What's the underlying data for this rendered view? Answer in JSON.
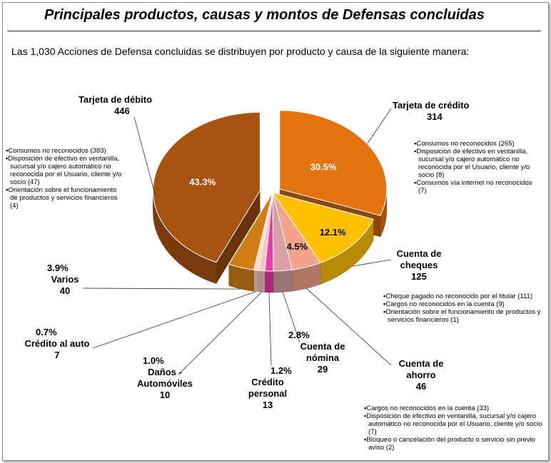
{
  "header": {
    "title": "Principales productos, causas y montos de Defensas concluidas",
    "subtitle": "Las 1,030 Acciones de Defensa concluidas se distribuyen por producto y causa de la siguiente manera:"
  },
  "chart_data": {
    "type": "pie",
    "total": 1030,
    "slices": [
      {
        "key": "credito_tarjeta",
        "label": "Tarjeta de crédito",
        "value": 314,
        "percent_label": "30.5%",
        "color": "#E3730F"
      },
      {
        "key": "cheques",
        "label": "Cuenta de cheques",
        "value": 125,
        "percent_label": "12.1%",
        "color": "#FFC000"
      },
      {
        "key": "ahorro",
        "label": "Cuenta de ahorro",
        "value": 46,
        "percent_label": "4.5%",
        "color": "#F4A48C"
      },
      {
        "key": "nomina",
        "label": "Cuenta de nómina",
        "value": 29,
        "percent_label": "2.8%",
        "color": "#D9A0A4"
      },
      {
        "key": "personal",
        "label": "Crédito personal",
        "value": 13,
        "percent_label": "1.2%",
        "color": "#E83BA8"
      },
      {
        "key": "danos",
        "label": "Daños - Automóviles",
        "value": 10,
        "percent_label": "1.0%",
        "color": "#F5C8BE"
      },
      {
        "key": "auto",
        "label": "Crédito al auto",
        "value": 7,
        "percent_label": "0.7%",
        "color": "#F7DBC8"
      },
      {
        "key": "varios",
        "label": "Varios",
        "value": 40,
        "percent_label": "3.9%",
        "color": "#D07E14"
      },
      {
        "key": "debito",
        "label": "Tarjeta de débito",
        "value": 446,
        "percent_label": "43.3%",
        "color": "#A8520F"
      }
    ]
  },
  "labels": {
    "debito": {
      "name": "Tarjeta de débito",
      "value": "446"
    },
    "credito": {
      "name": "Tarjeta de crédito",
      "value": "314"
    },
    "cheques": {
      "name1": "Cuenta de",
      "name2": "cheques",
      "value": "125"
    },
    "ahorro": {
      "name1": "Cuenta de",
      "name2": "ahorro",
      "value": "46"
    },
    "nomina": {
      "pct": "2.8%",
      "name1": "Cuenta de",
      "name2": "nómina",
      "value": "29"
    },
    "personal": {
      "pct": "1.2%",
      "name1": "Crédito",
      "name2": "personal",
      "value": "13"
    },
    "danos": {
      "pct": "1.0%",
      "name1": "Daños -",
      "name2": "Automóviles",
      "value": "10"
    },
    "auto": {
      "pct": "0.7%",
      "name": "Crédito al auto",
      "value": "7"
    },
    "varios": {
      "pct": "3.9%",
      "name": "Varios",
      "value": "40"
    }
  },
  "inner_labels": {
    "debito": "43.3%",
    "credito": "30.5%",
    "cheques": "12.1%",
    "ahorro": "4.5%"
  },
  "notes": {
    "debito": [
      "Consumos no reconocidos (383)",
      "Disposición de efectivo en ventanilla, sucursal y/o cajero automático no reconocida por el Usuario, cliente y/o socio (47)",
      "Orientación sobre el funcionamiento de productos y servicios financieros (4)"
    ],
    "credito": [
      "Consumos no reconocidos (265)",
      "Disposición de efectivo en ventanilla, sucursal y/o cajero automático no reconocida por el Usuario, cliente y/o socio (8)",
      "Consumos vía internet no reconocidos (7)"
    ],
    "cheques": [
      "Cheque pagado no reconocido por el titular (111)",
      "Cargos no reconocidos en la cuenta (9)",
      "Orientación sobre el funcionamiento de productos y servicios financieros (1)"
    ],
    "ahorro": [
      "Cargos no reconocidos en la cuenta (33)",
      "Disposición de efectivo en ventanilla, sucursal y/o cajero automático no reconocida por el Usuario, cliente y/o socio (7)",
      "Bloqueo o cancelación del producto o servicio sin previo aviso (2)"
    ]
  }
}
